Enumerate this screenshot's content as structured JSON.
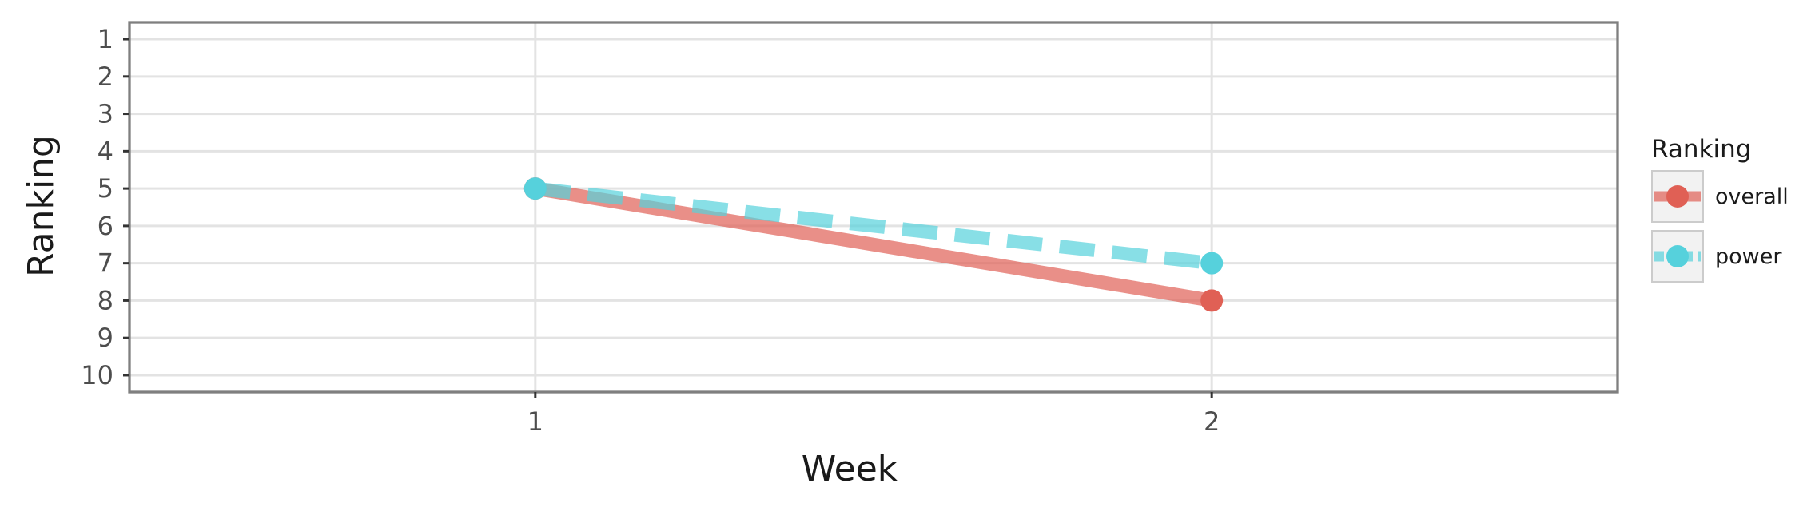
{
  "chart_data": {
    "type": "line",
    "xlabel": "Week",
    "ylabel": "Ranking",
    "x": [
      1,
      2
    ],
    "xlim": [
      0.4,
      2.6
    ],
    "ylim": [
      10.45,
      0.55
    ],
    "y_reversed": true,
    "x_ticks": [
      "1",
      "2"
    ],
    "y_ticks": [
      "1",
      "2",
      "3",
      "4",
      "5",
      "6",
      "7",
      "8",
      "9",
      "10"
    ],
    "grid": true,
    "legend": {
      "title": "Ranking",
      "position": "right"
    },
    "series": [
      {
        "name": "overall",
        "values": [
          5,
          8
        ],
        "color": "#e06055",
        "line_style": "solid"
      },
      {
        "name": "power",
        "values": [
          5,
          7
        ],
        "color": "#56d1dc",
        "line_style": "dashed"
      }
    ]
  }
}
